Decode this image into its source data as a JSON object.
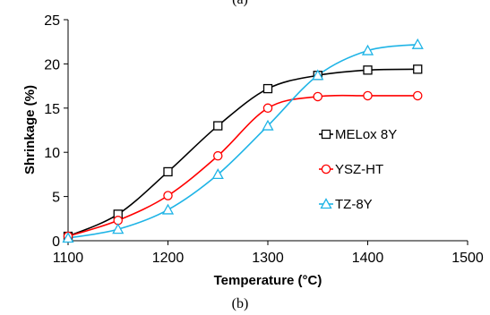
{
  "chart_data": {
    "type": "line",
    "top_caption": "(a)",
    "caption": "(b)",
    "xlabel": "Temperature (°C)",
    "ylabel": "Shrinkage (%)",
    "xlim": [
      1100,
      1500
    ],
    "ylim": [
      0,
      25
    ],
    "x_ticks": [
      "1100",
      "1200",
      "1300",
      "1400",
      "1500"
    ],
    "y_ticks": [
      "0",
      "5",
      "10",
      "15",
      "20",
      "25"
    ],
    "grid": false,
    "legend_position": "right",
    "series": [
      {
        "name": "MELox 8Y",
        "marker": "square",
        "color": "#000000",
        "x": [
          1100,
          1150,
          1200,
          1250,
          1300,
          1350,
          1400,
          1450
        ],
        "y": [
          0.5,
          3.0,
          7.8,
          13.0,
          17.2,
          18.7,
          19.3,
          19.4
        ]
      },
      {
        "name": "YSZ-HT",
        "marker": "circle",
        "color": "#ff0000",
        "x": [
          1100,
          1150,
          1200,
          1250,
          1300,
          1350,
          1400,
          1450
        ],
        "y": [
          0.5,
          2.3,
          5.1,
          9.6,
          15.0,
          16.3,
          16.4,
          16.4
        ]
      },
      {
        "name": "TZ-8Y",
        "marker": "triangle",
        "color": "#1fb4e6",
        "x": [
          1100,
          1150,
          1200,
          1250,
          1300,
          1350,
          1400,
          1450
        ],
        "y": [
          0.3,
          1.3,
          3.5,
          7.5,
          13.0,
          18.7,
          21.5,
          22.2
        ]
      }
    ]
  }
}
